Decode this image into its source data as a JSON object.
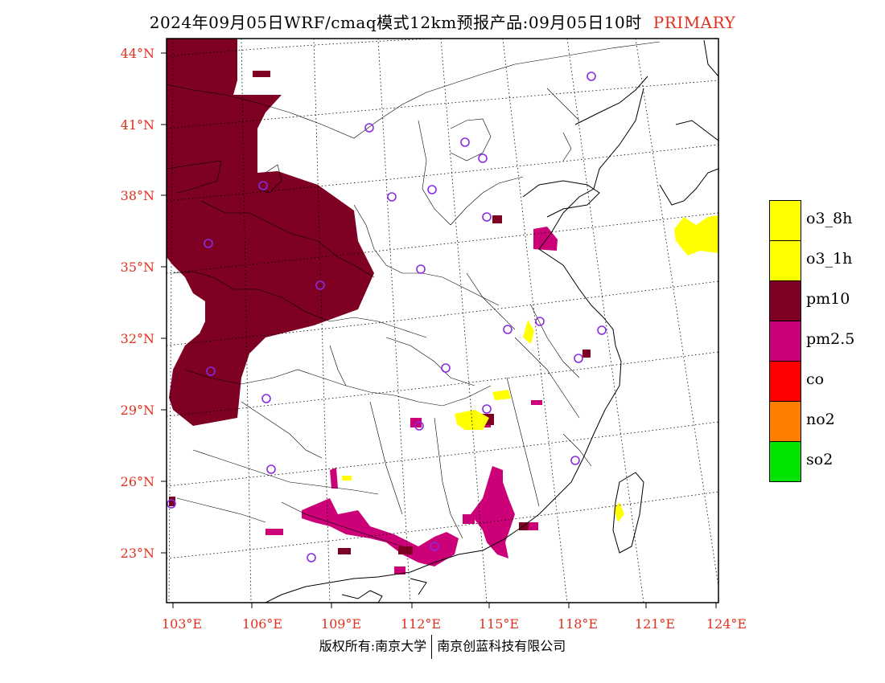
{
  "title": {
    "main": "2024年09月05日WRF/cmaq模式12km预报产品:09月05日10时",
    "tag": "PRIMARY"
  },
  "axes": {
    "lat_labels": [
      "44°N",
      "41°N",
      "38°N",
      "35°N",
      "32°N",
      "29°N",
      "26°N",
      "23°N"
    ],
    "lon_labels": [
      "103°E",
      "106°E",
      "109°E",
      "112°E",
      "115°E",
      "118°E",
      "121°E",
      "124°E"
    ]
  },
  "legend": [
    {
      "label": "o3_8h",
      "color": "#ffff00"
    },
    {
      "label": "o3_1h",
      "color": "#ffff00"
    },
    {
      "label": "pm10",
      "color": "#7e0023"
    },
    {
      "label": "pm2.5",
      "color": "#cc0077"
    },
    {
      "label": "co",
      "color": "#ff0000"
    },
    {
      "label": "no2",
      "color": "#ff7e00"
    },
    {
      "label": "so2",
      "color": "#00e400"
    }
  ],
  "credit": {
    "left": "版权所有:南京大学",
    "right": "南京创蓝科技有限公司"
  },
  "colors": {
    "tick_label": "#e0301e",
    "station_marker": "#8a2be2"
  }
}
